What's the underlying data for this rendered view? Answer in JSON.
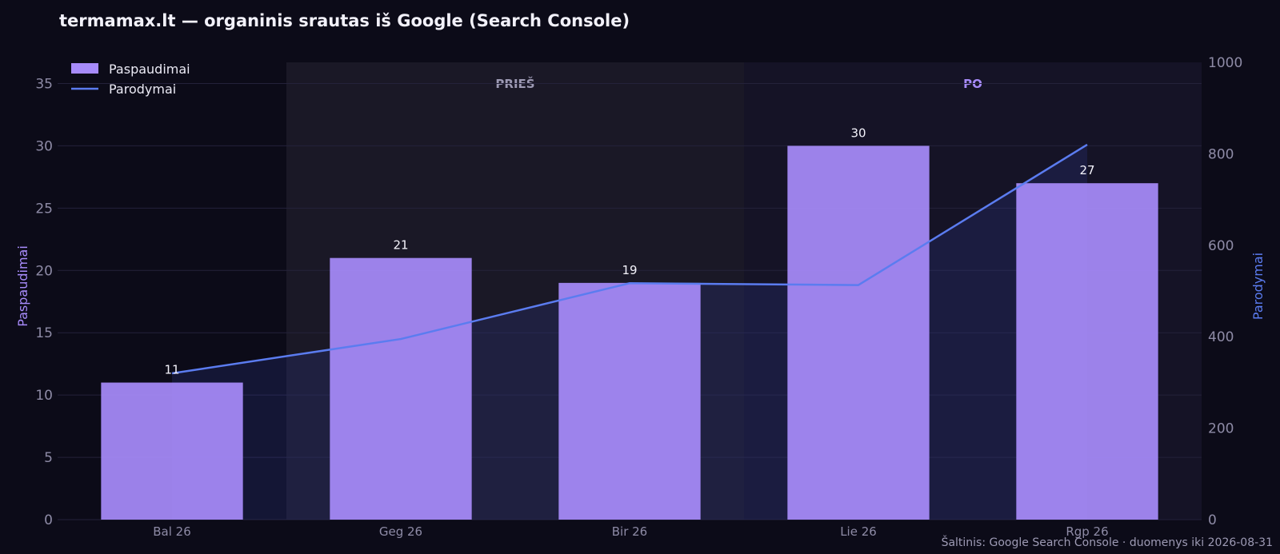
{
  "title": "termamax.lt — organinis srautas iš Google (Search Console)",
  "source_note": "Šaltinis: Google Search Console · duomenys iki 2026-08-31",
  "colors": {
    "background": "#0c0b18",
    "bars": "#a78bfa",
    "line": "#5b7cf0",
    "left_axis_label": "#a78bfa",
    "right_axis_label": "#5b7cf0",
    "ticks": "#8e8ba6",
    "grid": "#24223a"
  },
  "chart_data": {
    "type": "bar",
    "categories": [
      "Bal 26",
      "Geg 26",
      "Bir 26",
      "Lie 26",
      "Rgp 26"
    ],
    "series": [
      {
        "name": "Paspaudimai",
        "type": "bar",
        "axis": "left",
        "values": [
          11,
          21,
          19,
          30,
          27
        ],
        "data_labels": [
          "11",
          "21",
          "19",
          "30",
          "27"
        ]
      },
      {
        "name": "Parodymai",
        "type": "line",
        "axis": "right",
        "values": [
          320,
          395,
          517,
          513,
          820
        ]
      }
    ],
    "ylabel": "Paspaudimai",
    "y2label": "Parodymai",
    "ylim": [
      0,
      36.7
    ],
    "y2lim": [
      0,
      1000
    ],
    "yticks": [
      "0",
      "5",
      "10",
      "15",
      "20",
      "25",
      "30",
      "35"
    ],
    "y2ticks": [
      "0",
      "200",
      "400",
      "600",
      "800",
      "1000"
    ],
    "grid": true,
    "legend": {
      "placement": "top-left",
      "items": [
        "Paspaudimai",
        "Parodymai"
      ]
    },
    "periods": [
      {
        "label": "PRIEŠ",
        "from": 0.5,
        "to": 2.5
      },
      {
        "label": "PO",
        "from": 2.5,
        "to": 4.5
      }
    ]
  }
}
